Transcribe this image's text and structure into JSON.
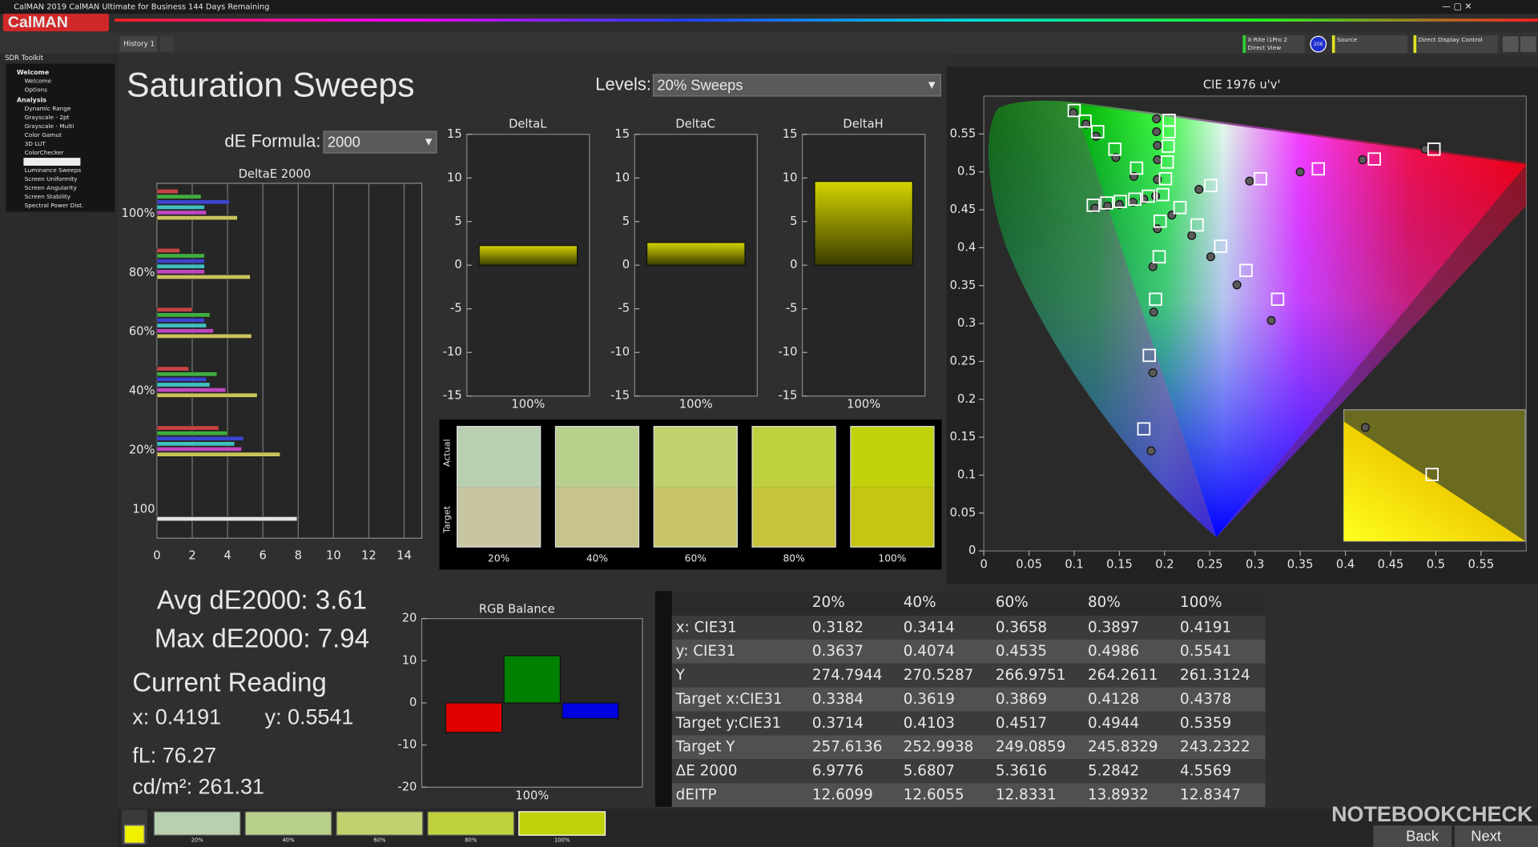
{
  "window": {
    "title": "CalMAN 2019 CalMAN Ultimate for Business 144 Days Remaining",
    "logo": "CalMAN",
    "tab": "History 1",
    "meter": [
      "X-Rite i1Pro 2",
      "Direct View"
    ],
    "meter_badge": "206",
    "source": "Source",
    "display": "Direct Display Control"
  },
  "sidebar": {
    "title": "SDR Toolkit",
    "groups": [
      {
        "label": "Welcome",
        "items": [
          "Welcome",
          "Options"
        ]
      },
      {
        "label": "Analysis",
        "items": [
          "Dynamic Range",
          "Grayscale - 2pt",
          "Grayscale - Multi",
          "Color Gamut",
          "3D LUT",
          "ColorChecker",
          "Saturation Sweeps",
          "Luminance Sweeps",
          "Screen Uniformity",
          "Screen Angularity",
          "Screen Stability",
          "Spectral Power Dist."
        ]
      }
    ],
    "selected": [
      1,
      6
    ]
  },
  "page": {
    "title": "Saturation Sweeps",
    "levels_label": "Levels:",
    "levels_value": "20% Sweeps",
    "formula_label": "dE Formula:",
    "formula_value": "2000"
  },
  "chart_data": [
    {
      "type": "hbar",
      "title": "DeltaE 2000",
      "categories": [
        "100%",
        "80%",
        "60%",
        "40%",
        "20%",
        "100"
      ],
      "series": [
        {
          "color": "#c84343",
          "values": [
            1.2,
            1.3,
            2.0,
            1.8,
            3.5,
            null
          ]
        },
        {
          "color": "#3fae3f",
          "values": [
            2.5,
            2.7,
            3.0,
            3.4,
            4.0,
            null
          ]
        },
        {
          "color": "#3b45d0",
          "values": [
            4.1,
            2.7,
            2.7,
            2.8,
            4.9,
            null
          ]
        },
        {
          "color": "#3fc0c0",
          "values": [
            2.7,
            2.7,
            2.8,
            3.0,
            4.4,
            null
          ]
        },
        {
          "color": "#c046c0",
          "values": [
            2.8,
            2.7,
            3.2,
            3.9,
            4.8,
            null
          ]
        },
        {
          "color": "#c9c35a",
          "values": [
            4.5569,
            5.2842,
            5.3616,
            5.6807,
            6.9776,
            null
          ]
        },
        {
          "color": "#e4e4e4",
          "values": [
            null,
            null,
            null,
            null,
            null,
            7.94
          ]
        }
      ],
      "xlim": [
        0,
        15
      ],
      "xticks": [
        0,
        2,
        4,
        6,
        8,
        10,
        12,
        14
      ],
      "grid": true
    },
    {
      "type": "bar",
      "title": "DeltaL",
      "categories": [
        "100%"
      ],
      "values": [
        2.25
      ],
      "color": "#c8c800",
      "ylim": [
        -15,
        15
      ],
      "yticks": [
        -15,
        -10,
        -5,
        0,
        5,
        10,
        15
      ]
    },
    {
      "type": "bar",
      "title": "DeltaC",
      "categories": [
        "100%"
      ],
      "values": [
        2.6
      ],
      "color": "#c8c800",
      "ylim": [
        -15,
        15
      ],
      "yticks": [
        -15,
        -10,
        -5,
        0,
        5,
        10,
        15
      ]
    },
    {
      "type": "bar",
      "title": "DeltaH",
      "categories": [
        "100%"
      ],
      "values": [
        9.6
      ],
      "color": "#c8c800",
      "ylim": [
        -15,
        15
      ],
      "yticks": [
        -15,
        -10,
        -5,
        0,
        5,
        10,
        15
      ]
    },
    {
      "type": "bar",
      "title": "RGB Balance",
      "categories": [
        "100%"
      ],
      "series": [
        {
          "color": "#e00000",
          "values": [
            -7.0
          ]
        },
        {
          "color": "#008000",
          "values": [
            11.2
          ]
        },
        {
          "color": "#0000e0",
          "values": [
            -3.7
          ]
        }
      ],
      "ylim": [
        -20,
        20
      ],
      "yticks": [
        -20,
        -10,
        0,
        10,
        20
      ]
    },
    {
      "type": "scatter",
      "title": "CIE 1976 u'v'",
      "xlim": [
        0,
        0.6
      ],
      "ylim": [
        0,
        0.6
      ],
      "xticks": [
        0,
        0.05,
        0.1,
        0.15,
        0.2,
        0.25,
        0.3,
        0.35,
        0.4,
        0.45,
        0.5,
        0.55
      ],
      "yticks": [
        0,
        0.05,
        0.1,
        0.15,
        0.2,
        0.25,
        0.3,
        0.35,
        0.4,
        0.45,
        0.5,
        0.55
      ],
      "series": [
        {
          "marker": "circle",
          "color": "#5a5a5a",
          "x": [
            0.099,
            0.113,
            0.124,
            0.146,
            0.166,
            0.177,
            0.165,
            0.15,
            0.137,
            0.123,
            0.191,
            0.191,
            0.192,
            0.192,
            0.192,
            0.238,
            0.294,
            0.35,
            0.419,
            0.488,
            0.208,
            0.23,
            0.251,
            0.28,
            0.318,
            0.192,
            0.187,
            0.188,
            0.187,
            0.185,
            0.19
          ],
          "y": [
            0.578,
            0.563,
            0.547,
            0.519,
            0.494,
            0.464,
            0.46,
            0.457,
            0.455,
            0.452,
            0.57,
            0.553,
            0.535,
            0.516,
            0.49,
            0.477,
            0.488,
            0.5,
            0.516,
            0.53,
            0.443,
            0.416,
            0.388,
            0.351,
            0.304,
            0.425,
            0.375,
            0.315,
            0.235,
            0.132,
            0.468
          ]
        },
        {
          "marker": "square",
          "color": "#ffffff",
          "x": [
            0.1,
            0.112,
            0.126,
            0.145,
            0.169,
            0.182,
            0.167,
            0.151,
            0.136,
            0.121,
            0.201,
            0.203,
            0.204,
            0.205,
            0.205,
            0.251,
            0.306,
            0.37,
            0.432,
            0.498,
            0.217,
            0.236,
            0.262,
            0.29,
            0.325,
            0.195,
            0.194,
            0.19,
            0.183,
            0.177,
            0.198
          ],
          "y": [
            0.581,
            0.567,
            0.553,
            0.53,
            0.505,
            0.468,
            0.464,
            0.461,
            0.459,
            0.456,
            0.491,
            0.513,
            0.534,
            0.553,
            0.568,
            0.482,
            0.491,
            0.504,
            0.517,
            0.53,
            0.453,
            0.43,
            0.402,
            0.37,
            0.332,
            0.435,
            0.388,
            0.332,
            0.258,
            0.161,
            0.47
          ]
        }
      ]
    }
  ],
  "swatches": {
    "actual_label": "Actual",
    "target_label": "Target",
    "labels": [
      "20%",
      "40%",
      "60%",
      "80%",
      "100%"
    ],
    "actual": [
      "#b9cfb1",
      "#b9d08c",
      "#bfd26e",
      "#bfd13e",
      "#c1d10c"
    ],
    "target": [
      "#c7c5a2",
      "#c6c48a",
      "#c8c467",
      "#c5c43b",
      "#c5c513"
    ]
  },
  "stats": {
    "avg": "Avg dE2000: 3.61",
    "max": "Max dE2000: 7.94",
    "reading_title": "Current Reading",
    "x": "x: 0.4191",
    "y": "y: 0.5541",
    "fl": "fL: 76.27",
    "cdm2": "cd/m²: 261.31"
  },
  "table": {
    "header": [
      "20%",
      "40%",
      "60%",
      "80%",
      "100%"
    ],
    "rows": [
      [
        "x: CIE31",
        "0.3182",
        "0.3414",
        "0.3658",
        "0.3897",
        "0.4191"
      ],
      [
        "y: CIE31",
        "0.3637",
        "0.4074",
        "0.4535",
        "0.4986",
        "0.5541"
      ],
      [
        "Y",
        "274.7944",
        "270.5287",
        "266.9751",
        "264.2611",
        "261.3124"
      ],
      [
        "Target x:CIE31",
        "0.3384",
        "0.3619",
        "0.3869",
        "0.4128",
        "0.4378"
      ],
      [
        "Target y:CIE31",
        "0.3714",
        "0.4103",
        "0.4517",
        "0.4944",
        "0.5359"
      ],
      [
        "Target Y",
        "257.6136",
        "252.9938",
        "249.0859",
        "245.8329",
        "243.2322"
      ],
      [
        "ΔE 2000",
        "6.9776",
        "5.6807",
        "5.3616",
        "5.2842",
        "4.5569"
      ],
      [
        "dEITP",
        "12.6099",
        "12.6055",
        "12.8331",
        "13.8932",
        "12.8347"
      ]
    ]
  },
  "footer": {
    "labels": [
      "20%",
      "40%",
      "60%",
      "80%",
      "100%"
    ],
    "back": "Back",
    "next": "Next",
    "watermark": "NOTEBOOKCHECK"
  }
}
